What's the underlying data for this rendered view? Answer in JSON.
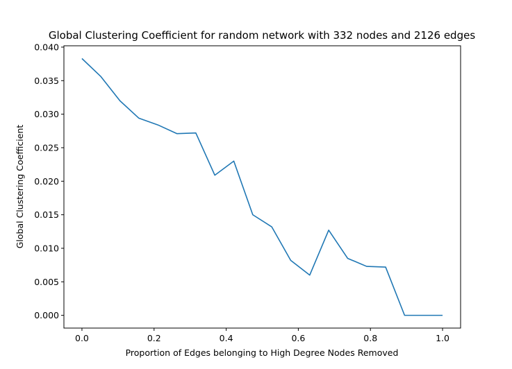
{
  "chart_data": {
    "type": "line",
    "title": "Global Clustering Coefficient for random network with 332 nodes and 2126 edges",
    "xlabel": "Proportion of Edges belonging to High Degree Nodes Removed",
    "ylabel": "Global Clustering Coefficient",
    "xlim": [
      -0.05,
      1.05
    ],
    "ylim": [
      -0.0019,
      0.0402
    ],
    "x_ticks": [
      0.0,
      0.2,
      0.4,
      0.6,
      0.8,
      1.0
    ],
    "x_tick_labels": [
      "0.0",
      "0.2",
      "0.4",
      "0.6",
      "0.8",
      "1.0"
    ],
    "y_ticks": [
      0.0,
      0.005,
      0.01,
      0.015,
      0.02,
      0.025,
      0.03,
      0.035,
      0.04
    ],
    "y_tick_labels": [
      "0.000",
      "0.005",
      "0.010",
      "0.015",
      "0.020",
      "0.025",
      "0.030",
      "0.035",
      "0.040"
    ],
    "grid": false,
    "line_color": "#1f77b4",
    "series": [
      {
        "x": [
          0.0,
          0.0526,
          0.1053,
          0.1579,
          0.2105,
          0.2632,
          0.3158,
          0.3684,
          0.4211,
          0.4737,
          0.5263,
          0.5789,
          0.6316,
          0.6842,
          0.7368,
          0.7895,
          0.8421,
          0.8947,
          0.9474,
          1.0
        ],
        "values": [
          0.0383,
          0.0356,
          0.032,
          0.0294,
          0.0284,
          0.0271,
          0.0272,
          0.0209,
          0.023,
          0.015,
          0.0132,
          0.0082,
          0.006,
          0.0127,
          0.0085,
          0.0073,
          0.0072,
          0.0,
          0.0,
          0.0
        ]
      }
    ]
  }
}
